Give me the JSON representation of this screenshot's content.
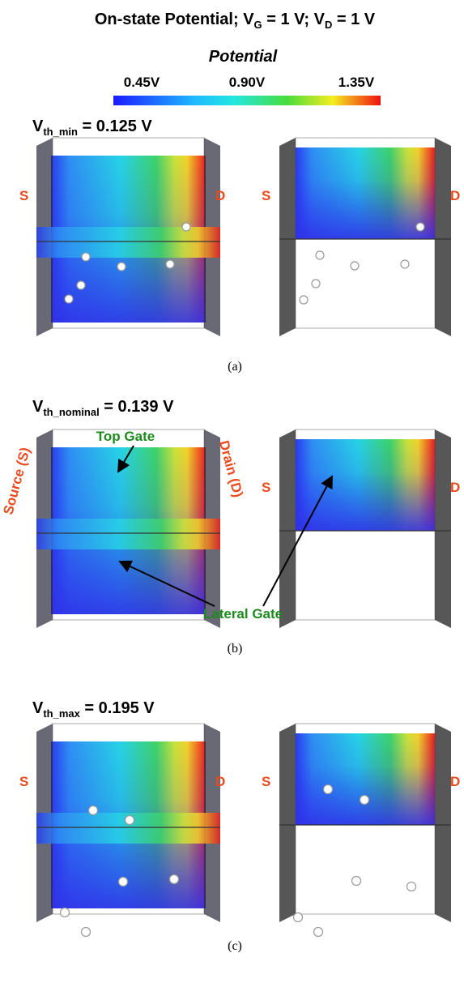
{
  "title": [
    "On-state Potential; V",
    "G",
    " = 1 V; V",
    "D",
    " = 1 V"
  ],
  "colorbar": {
    "label": "Potential",
    "ticks": [
      "0.45V",
      "0.90V",
      "1.35V"
    ]
  },
  "panels": [
    {
      "vth": [
        "V",
        "th_min",
        " = 0.125 V"
      ],
      "left_labels": [
        "S",
        "D"
      ],
      "right_labels": [
        "S",
        "D"
      ],
      "caption": "(a)"
    },
    {
      "vth": [
        "V",
        "th_nominal",
        " = 0.139 V"
      ],
      "left_labels": [
        "Source (S)",
        "Drain (D)"
      ],
      "right_labels": [
        "S",
        "D"
      ],
      "annotations": [
        "Top Gate",
        "Lateral Gate"
      ],
      "caption": "(b)"
    },
    {
      "vth": [
        "V",
        "th_max",
        " = 0.195 V"
      ],
      "left_labels": [
        "S",
        "D"
      ],
      "right_labels": [
        "S",
        "D"
      ],
      "caption": "(c)"
    }
  ]
}
